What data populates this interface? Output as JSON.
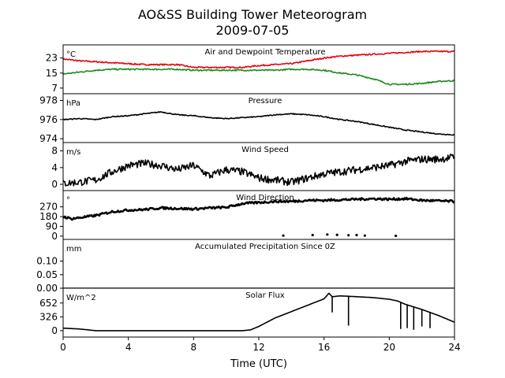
{
  "figure": {
    "title_line1": "AO&SS Building Tower Meteorogram",
    "title_line2": "2009-07-05",
    "xlabel": "Time (UTC)",
    "xticks": [
      "0",
      "4",
      "8",
      "12",
      "16",
      "20",
      "24"
    ]
  },
  "colors": {
    "temperature": "#e8000b",
    "dewpoint": "#1a8a1a",
    "default": "#000000"
  },
  "chart_data": [
    {
      "type": "line",
      "title": "Air and Dewpoint Temperature",
      "unit_label": "°C",
      "xlim": [
        0,
        24
      ],
      "ylim": [
        4,
        30
      ],
      "yticks": [
        "23",
        "15",
        "7"
      ],
      "ytick_values": [
        23,
        15,
        7
      ],
      "x": [
        0,
        1,
        2,
        3,
        4,
        5,
        6,
        7,
        8,
        9,
        10,
        11,
        12,
        13,
        14,
        15,
        16,
        17,
        18,
        19,
        20,
        21,
        22,
        23,
        24
      ],
      "series": [
        {
          "name": "",
          "values": [
            22.5,
            21.5,
            21,
            20.5,
            20,
            19.5,
            19.5,
            19.5,
            18,
            18,
            18,
            18,
            19,
            19.5,
            20,
            21.5,
            23,
            24,
            24.5,
            25,
            25.5,
            26,
            26.5,
            26.5,
            26.5
          ],
          "color": "#e8000b"
        },
        {
          "name": "",
          "values": [
            14.5,
            15.5,
            16.5,
            17,
            17,
            17,
            17,
            17,
            16.5,
            16.5,
            16.5,
            16.5,
            16.5,
            16.5,
            17,
            17,
            16.5,
            15,
            14,
            12,
            9,
            9,
            9.5,
            10.5,
            11
          ],
          "color": "#1a8a1a"
        }
      ]
    },
    {
      "type": "line",
      "title": "Pressure",
      "unit_label": "hPa",
      "xlim": [
        0,
        24
      ],
      "ylim": [
        973.6,
        978.7
      ],
      "yticks": [
        "978",
        "976",
        "974"
      ],
      "ytick_values": [
        978,
        976,
        974
      ],
      "x": [
        0,
        1,
        2,
        3,
        4,
        5,
        6,
        7,
        8,
        9,
        10,
        11,
        12,
        13,
        14,
        15,
        16,
        17,
        18,
        19,
        20,
        21,
        22,
        23,
        24
      ],
      "series": [
        {
          "name": "",
          "values": [
            976.0,
            976.1,
            976.0,
            976.3,
            976.4,
            976.6,
            976.8,
            976.5,
            976.4,
            976.2,
            976.1,
            976.2,
            976.3,
            976.5,
            976.6,
            976.5,
            976.3,
            976.0,
            975.8,
            975.5,
            975.2,
            974.9,
            974.7,
            974.5,
            974.4
          ]
        }
      ]
    },
    {
      "type": "line",
      "title": "Wind Speed",
      "unit_label": "m/s",
      "xlim": [
        0,
        24
      ],
      "ylim": [
        -1.5,
        10.0
      ],
      "yticks": [
        "8",
        "4",
        "0"
      ],
      "ytick_values": [
        8,
        4,
        0
      ],
      "x": [
        0,
        1,
        2,
        3,
        4,
        5,
        6,
        7,
        8,
        9,
        10,
        11,
        12,
        13,
        14,
        15,
        16,
        17,
        18,
        19,
        20,
        21,
        22,
        23,
        24
      ],
      "series": [
        {
          "name": "",
          "values": [
            0.2,
            0.5,
            1.0,
            3.0,
            4.5,
            5.0,
            4.5,
            3.5,
            4.5,
            2.0,
            3.5,
            3.0,
            1.5,
            1.0,
            0.5,
            1.5,
            2.5,
            3.0,
            3.5,
            4.0,
            4.5,
            5.5,
            6.0,
            6.0,
            6.5
          ]
        }
      ]
    },
    {
      "type": "scatter",
      "title": "Wind Direction",
      "unit_label": "°",
      "xlim": [
        0,
        24
      ],
      "ylim": [
        -30,
        420
      ],
      "yticks": [
        "270",
        "180",
        "90",
        "0"
      ],
      "ytick_values": [
        270,
        180,
        90,
        0
      ],
      "x": [
        0,
        0.5,
        1,
        2,
        3,
        4,
        5,
        6,
        7,
        8,
        9,
        10,
        11,
        12,
        13,
        14,
        15,
        16,
        17,
        18,
        19,
        20,
        21,
        22,
        23,
        24
      ],
      "series": [
        {
          "name": "",
          "values": [
            180,
            160,
            170,
            190,
            225,
            240,
            245,
            260,
            255,
            250,
            260,
            265,
            300,
            310,
            320,
            320,
            330,
            330,
            335,
            340,
            345,
            340,
            345,
            330,
            325,
            320
          ]
        },
        {
          "name": "",
          "values": [
            5,
            10,
            15,
            12,
            8,
            10,
            5,
            3
          ],
          "x": [
            13.5,
            15.3,
            16.2,
            16.8,
            17.5,
            18.0,
            18.5,
            20.4
          ],
          "style": "points"
        }
      ]
    },
    {
      "type": "line",
      "title": "Accumulated Precipitation Since 0Z",
      "unit_label": "mm",
      "xlim": [
        0,
        24
      ],
      "ylim": [
        0,
        0.18
      ],
      "yticks": [
        "0.10",
        "0.05",
        "0.00"
      ],
      "ytick_values": [
        0.1,
        0.05,
        0.0
      ],
      "x": [
        0,
        24
      ],
      "series": [
        {
          "name": "",
          "values": [
            0,
            0
          ]
        }
      ]
    },
    {
      "type": "line",
      "title": "Solar Flux",
      "unit_label": "W/m^2",
      "xlim": [
        0,
        24
      ],
      "ylim": [
        -150,
        1000
      ],
      "yticks": [
        "652",
        "326",
        "0"
      ],
      "ytick_values": [
        652,
        326,
        0
      ],
      "x": [
        0,
        1,
        2,
        3,
        4,
        6,
        8,
        10,
        11,
        11.5,
        12,
        13,
        14,
        15,
        16,
        16.3,
        16.5,
        17,
        18,
        19,
        20,
        20.5,
        21,
        22,
        23,
        24
      ],
      "series": [
        {
          "name": "",
          "values": [
            60,
            40,
            0,
            0,
            0,
            0,
            0,
            0,
            0,
            20,
            100,
            300,
            450,
            600,
            750,
            880,
            800,
            820,
            800,
            780,
            740,
            700,
            620,
            500,
            360,
            200
          ]
        }
      ]
    }
  ]
}
